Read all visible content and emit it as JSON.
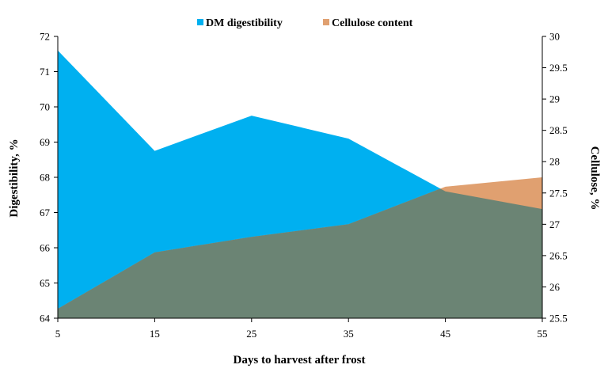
{
  "chart_data": {
    "type": "area",
    "x": [
      5,
      15,
      25,
      35,
      45,
      55
    ],
    "xlabel": "Days to harvest after frost",
    "series": [
      {
        "name": "DM digestibility",
        "axis": "left",
        "color": "#00b0f0",
        "values": [
          71.6,
          68.75,
          69.75,
          69.1,
          67.6,
          67.1
        ]
      },
      {
        "name": "Cellulose content",
        "axis": "right",
        "color": "#e0a070",
        "values": [
          25.65,
          26.55,
          26.8,
          27.0,
          27.6,
          27.75
        ]
      }
    ],
    "overlap_color": "#6b8474",
    "y_left": {
      "label": "Digestibility, %",
      "range": [
        64,
        72
      ],
      "ticks": [
        "64",
        "65",
        "66",
        "67",
        "68",
        "69",
        "70",
        "71",
        "72"
      ]
    },
    "y_right": {
      "label": "Cellulose, %",
      "range": [
        25.5,
        30
      ],
      "ticks": [
        "25.5",
        "26",
        "26.5",
        "27",
        "27.5",
        "28",
        "28.5",
        "29",
        "29.5",
        "30"
      ]
    },
    "x_ticks": [
      "5",
      "15",
      "25",
      "35",
      "45",
      "55"
    ],
    "legend_position": "top-center",
    "grid": false
  }
}
